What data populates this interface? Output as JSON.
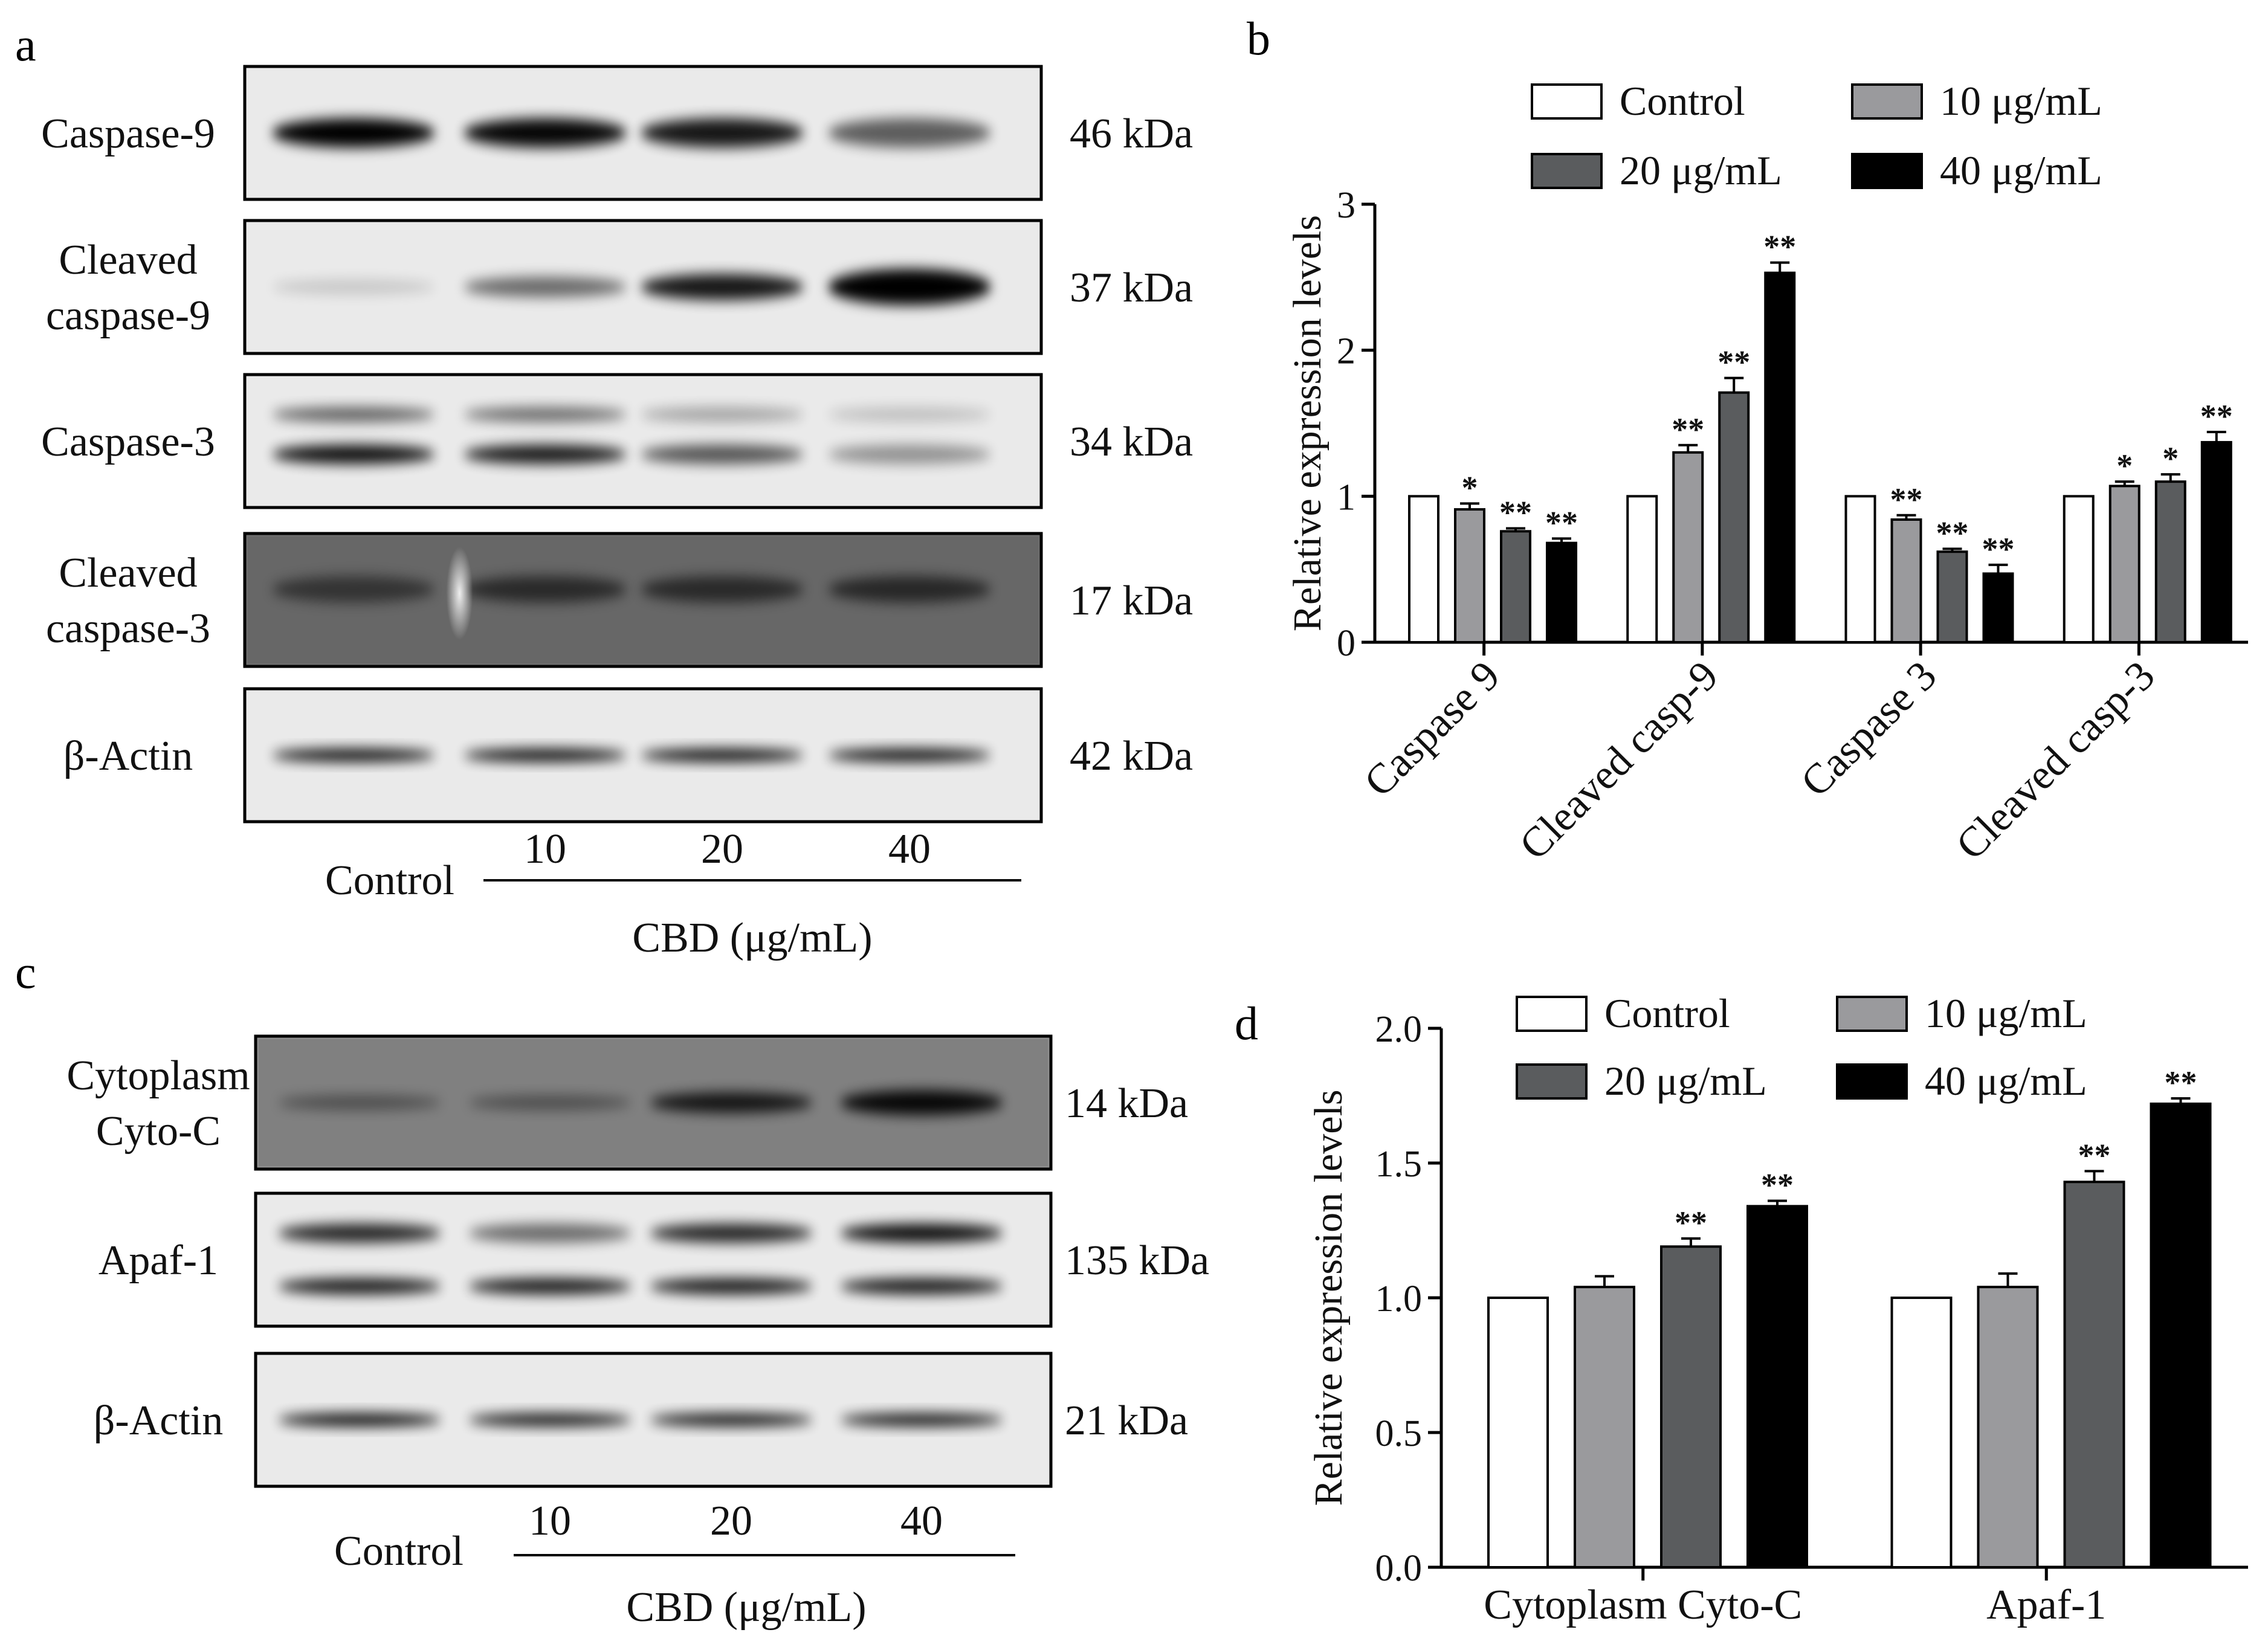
{
  "colors": {
    "control": "#ffffff",
    "c10": "#9a9a9d",
    "c20": "#5a5c5e",
    "c40": "#000000",
    "membrane": "#e9e9e9",
    "membrane_dark": "#8d8d8d"
  },
  "panel_a": {
    "letter": "a",
    "blots": [
      {
        "label_lines": [
          "Caspase-9"
        ],
        "mw": "46 kDa",
        "background": "light",
        "bands": [
          {
            "row": 0.5,
            "intensity": [
              1.0,
              0.97,
              0.9,
              0.6
            ],
            "thickness": 1.0
          }
        ]
      },
      {
        "label_lines": [
          "Cleaved",
          "caspase-9"
        ],
        "mw": "37 kDa",
        "background": "light",
        "bands": [
          {
            "row": 0.5,
            "intensity": [
              0.15,
              0.55,
              0.9,
              1.0
            ],
            "thickness": [
              0.5,
              0.7,
              0.9,
              1.25
            ]
          }
        ]
      },
      {
        "label_lines": [
          "Caspase-3"
        ],
        "mw": "34 kDa",
        "background": "light",
        "bands": [
          {
            "row": 0.3,
            "intensity": [
              0.6,
              0.55,
              0.3,
              0.18
            ],
            "thickness": 0.5
          },
          {
            "row": 0.6,
            "intensity": [
              0.95,
              0.9,
              0.65,
              0.38
            ],
            "thickness": 0.65
          }
        ]
      },
      {
        "label_lines": [
          "Cleaved",
          "caspase-3"
        ],
        "mw": "17 kDa",
        "background": "dark",
        "bands": [
          {
            "row": 0.42,
            "intensity": [
              0.5,
              0.6,
              0.6,
              0.62
            ],
            "thickness": 0.9
          }
        ]
      },
      {
        "label_lines": [
          "β-Actin"
        ],
        "mw": "42 kDa",
        "background": "light",
        "bands": [
          {
            "row": 0.5,
            "intensity": [
              0.95,
              0.95,
              0.95,
              0.95
            ],
            "thickness": 0.45
          }
        ]
      }
    ],
    "group_label": "Control",
    "doses": [
      "10",
      "20",
      "40"
    ],
    "cbd_label": "CBD (μg/mL)"
  },
  "panel_c": {
    "letter": "c",
    "blots": [
      {
        "label_lines": [
          "Cytoplasm",
          "Cyto-C"
        ],
        "mw": "14 kDa",
        "background": "mid",
        "bands": [
          {
            "row": 0.5,
            "intensity": [
              0.4,
              0.4,
              0.85,
              0.95
            ],
            "thickness": [
              0.5,
              0.5,
              0.7,
              0.85
            ]
          }
        ]
      },
      {
        "label_lines": [
          "Apaf-1"
        ],
        "mw": "135 kDa",
        "background": "light",
        "bands": [
          {
            "row": 0.3,
            "intensity": [
              0.85,
              0.55,
              0.85,
              0.95
            ],
            "thickness": 0.65
          },
          {
            "row": 0.7,
            "intensity": [
              0.9,
              0.9,
              0.9,
              0.9
            ],
            "thickness": 0.55
          }
        ]
      },
      {
        "label_lines": [
          "β-Actin"
        ],
        "mw": "21 kDa",
        "background": "light",
        "bands": [
          {
            "row": 0.5,
            "intensity": [
              0.95,
              0.9,
              0.9,
              0.9
            ],
            "thickness": 0.45
          }
        ]
      }
    ],
    "group_label": "Control",
    "doses": [
      "10",
      "20",
      "40"
    ],
    "cbd_label": "CBD (μg/mL)"
  },
  "legend_items": [
    {
      "label": "Control",
      "color": "#ffffff"
    },
    {
      "label": "10 μg/mL",
      "color": "#9a9a9d"
    },
    {
      "label": "20 μg/mL",
      "color": "#5a5c5e"
    },
    {
      "label": "40 μg/mL",
      "color": "#000000"
    }
  ],
  "chart_data": [
    {
      "panel": "b",
      "type": "bar",
      "ylabel": "Relative expression levels",
      "ylim": [
        0,
        3
      ],
      "yticks": [
        "0",
        "1",
        "2",
        "3"
      ],
      "categories": [
        "Caspase 9",
        "Cleaved casp-9",
        "Caspase 3",
        "Cleaved casp-3"
      ],
      "series": [
        {
          "name": "Control",
          "values": [
            1.0,
            1.0,
            1.0,
            1.0
          ],
          "errors": [
            0,
            0,
            0,
            0
          ],
          "sig": [
            "",
            "",
            "",
            ""
          ]
        },
        {
          "name": "10 μg/mL",
          "values": [
            0.91,
            1.3,
            0.84,
            1.07
          ],
          "errors": [
            0.04,
            0.05,
            0.03,
            0.03
          ],
          "sig": [
            "*",
            "**",
            "**",
            "*"
          ]
        },
        {
          "name": "20 μg/mL",
          "values": [
            0.76,
            1.71,
            0.62,
            1.1
          ],
          "errors": [
            0.02,
            0.1,
            0.02,
            0.05
          ],
          "sig": [
            "**",
            "**",
            "**",
            "*"
          ]
        },
        {
          "name": "40 μg/mL",
          "values": [
            0.68,
            2.53,
            0.47,
            1.37
          ],
          "errors": [
            0.03,
            0.07,
            0.06,
            0.07
          ],
          "sig": [
            "**",
            "**",
            "**",
            "**"
          ]
        }
      ],
      "legend": "top"
    },
    {
      "panel": "d",
      "type": "bar",
      "ylabel": "Relative expression levels",
      "ylim": [
        0,
        2.0
      ],
      "yticks": [
        "0.0",
        "0.5",
        "1.0",
        "1.5",
        "2.0"
      ],
      "categories": [
        "Cytoplasm Cyto-C",
        "Apaf-1"
      ],
      "series": [
        {
          "name": "Control",
          "values": [
            1.0,
            1.0
          ],
          "errors": [
            0,
            0
          ],
          "sig": [
            "",
            ""
          ]
        },
        {
          "name": "10 μg/mL",
          "values": [
            1.04,
            1.04
          ],
          "errors": [
            0.04,
            0.05
          ],
          "sig": [
            "",
            ""
          ]
        },
        {
          "name": "20 μg/mL",
          "values": [
            1.19,
            1.43
          ],
          "errors": [
            0.03,
            0.04
          ],
          "sig": [
            "**",
            "**"
          ]
        },
        {
          "name": "40 μg/mL",
          "values": [
            1.34,
            1.72
          ],
          "errors": [
            0.02,
            0.02
          ],
          "sig": [
            "**",
            "**"
          ]
        }
      ],
      "legend": "top"
    }
  ]
}
